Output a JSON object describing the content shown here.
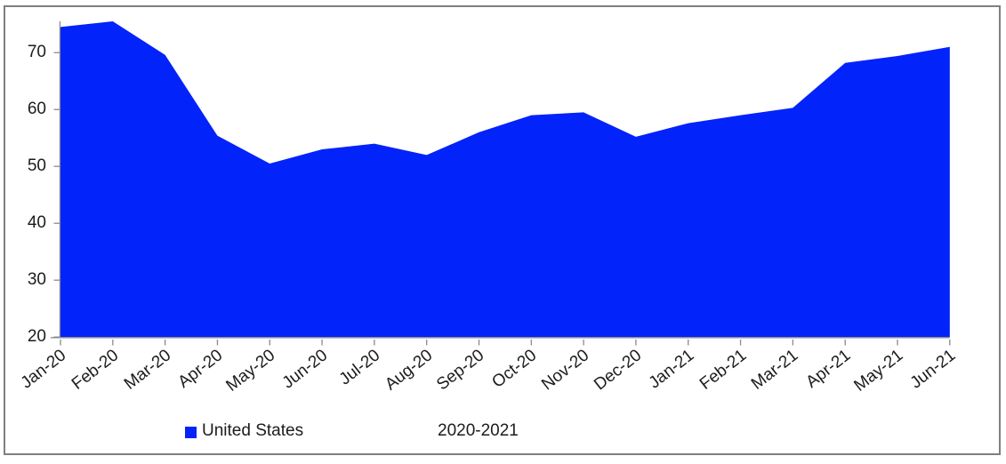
{
  "chart_data": {
    "type": "area",
    "title": "",
    "xlabel": "",
    "ylabel": "",
    "categories": [
      "Jan-20",
      "Feb-20",
      "Mar-20",
      "Apr-20",
      "May-20",
      "Jun-20",
      "Jul-20",
      "Aug-20",
      "Sep-20",
      "Oct-20",
      "Nov-20",
      "Dec-20",
      "Jan-21",
      "Feb-21",
      "Mar-21",
      "Apr-21",
      "May-21",
      "Jun-21"
    ],
    "series": [
      {
        "name": "United States",
        "values": [
          74.5,
          75.5,
          69.6,
          55.4,
          50.5,
          53,
          54,
          52,
          56,
          59,
          59.5,
          55.2,
          57.6,
          59,
          60.3,
          68.2,
          69.4,
          71
        ]
      }
    ],
    "ylim": [
      20,
      75.5
    ],
    "yticks": [
      20,
      30,
      40,
      50,
      60,
      70
    ],
    "grid": false,
    "legend_position": "bottom",
    "annotation": "2020-2021"
  },
  "legend": {
    "series_label": "United States",
    "annotation": "2020-2021"
  },
  "colors": {
    "area": "#0223fa",
    "axis": "#8a8a8a",
    "frame": "#7f7f7f",
    "text": "#1c1c1c"
  }
}
